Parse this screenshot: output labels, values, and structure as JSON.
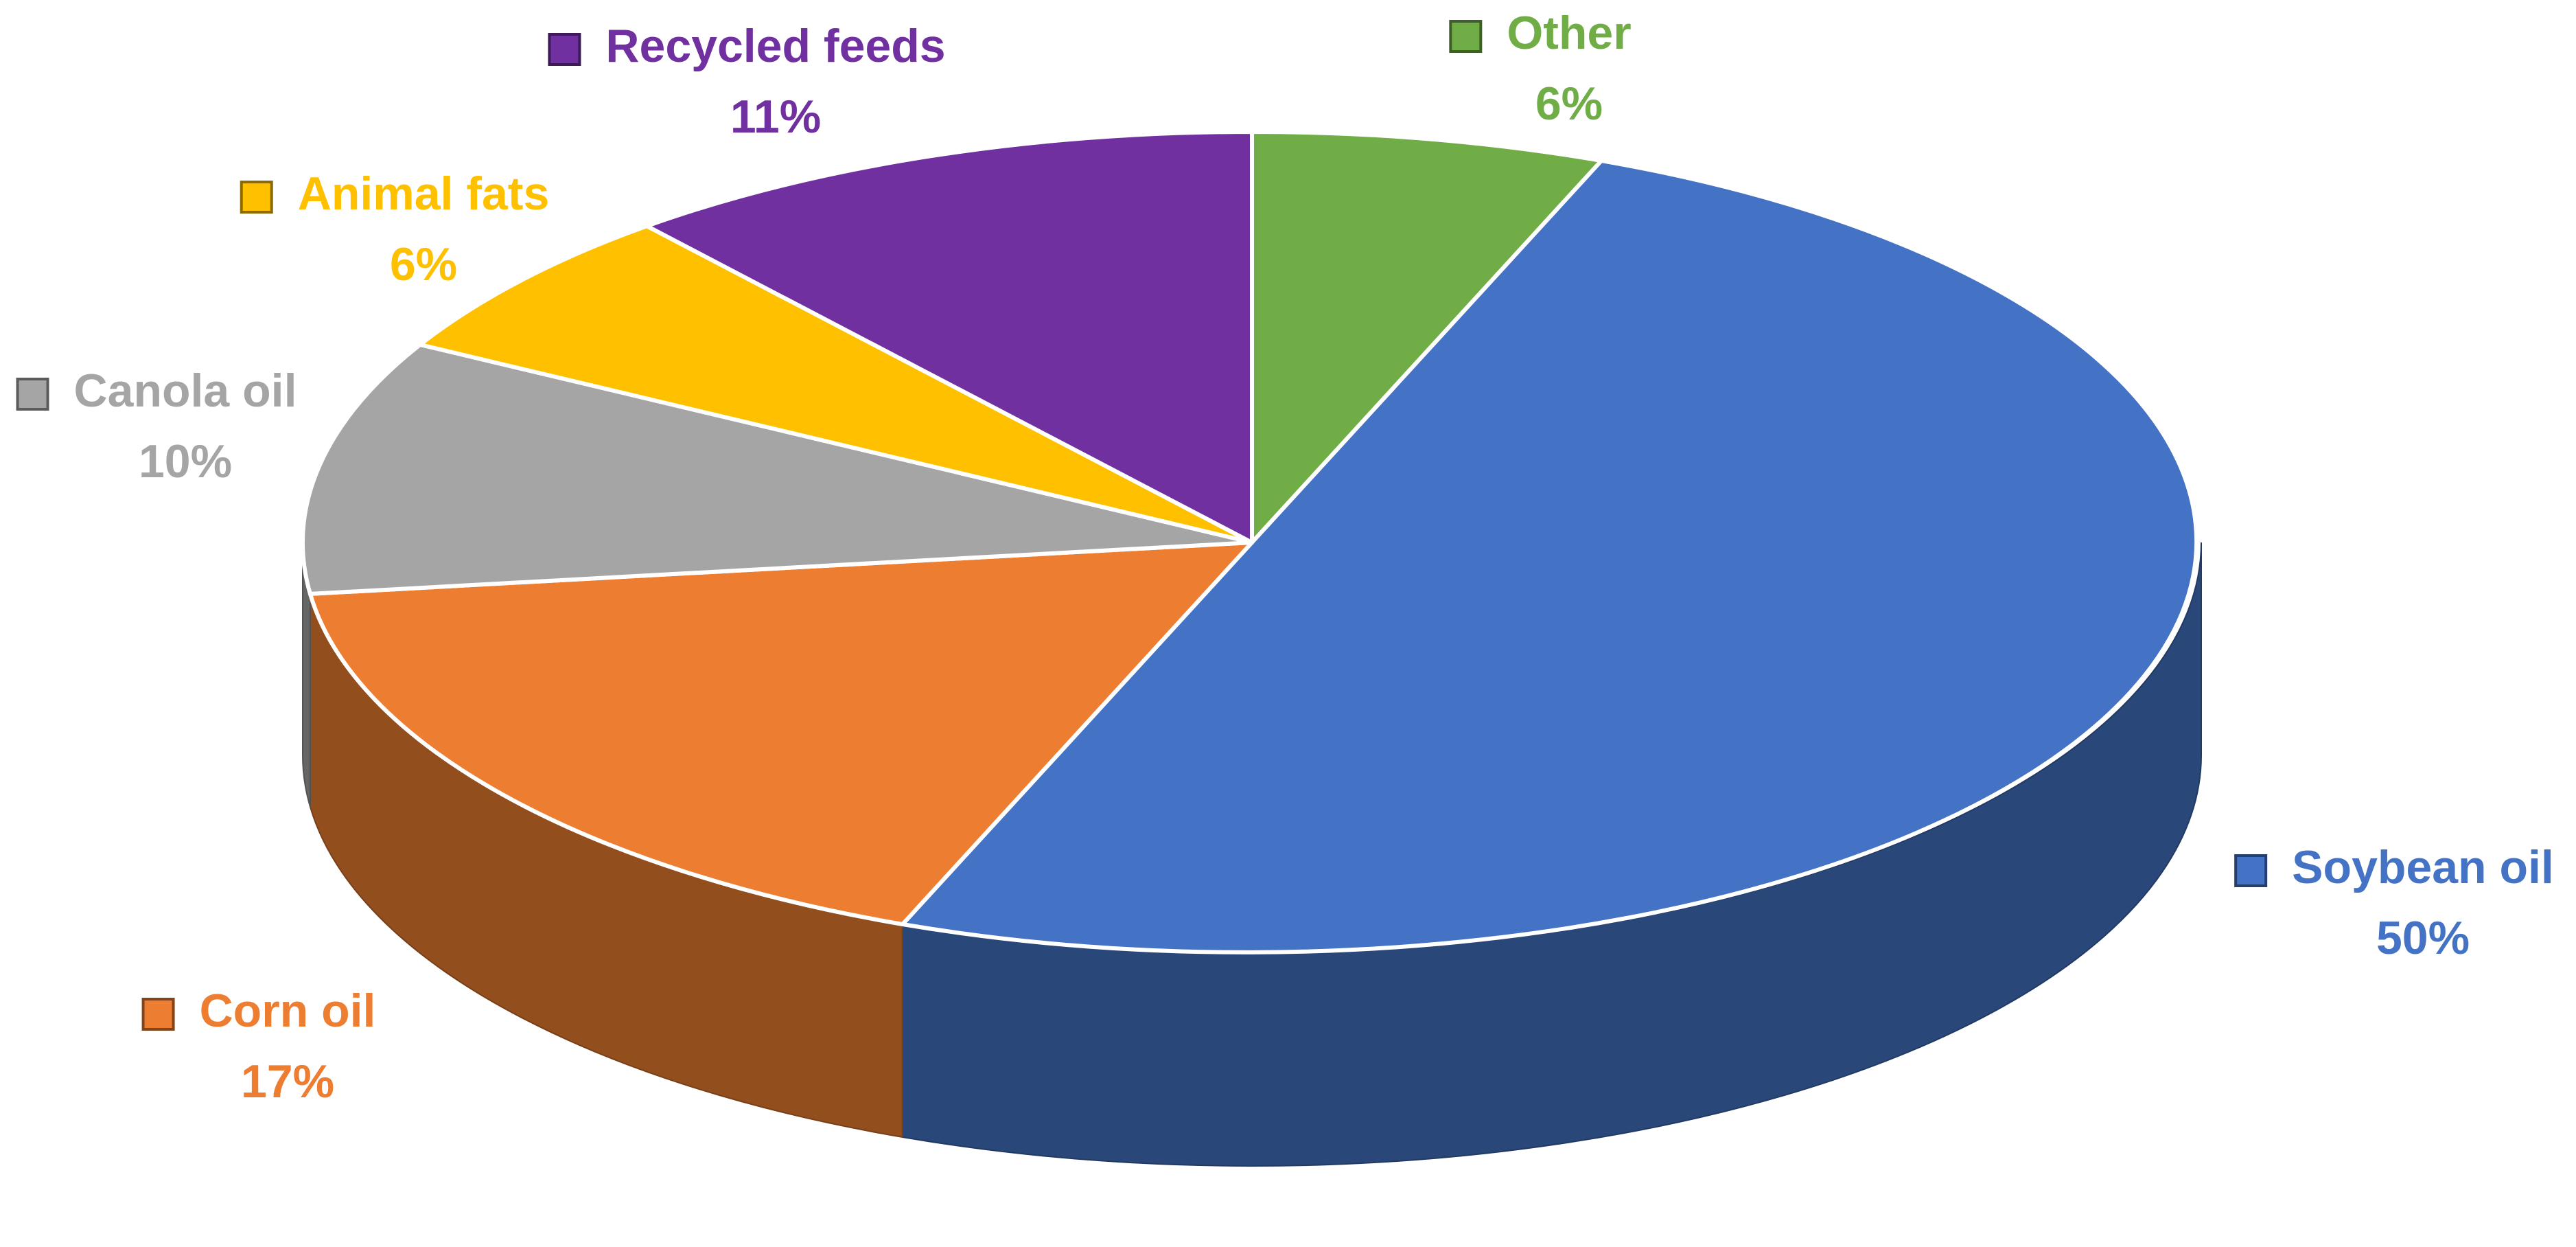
{
  "chart_data": {
    "type": "pie",
    "categories": [
      "Other",
      "Soybean oil",
      "Corn oil",
      "Canola oil",
      "Animal fats",
      "Recycled feeds"
    ],
    "values": [
      6,
      50,
      17,
      10,
      6,
      11
    ],
    "value_labels": [
      "6%",
      "50%",
      "17%",
      "10%",
      "6%",
      "11%"
    ],
    "colors": [
      "#70ad47",
      "#4472c4",
      "#ed7d31",
      "#a5a5a5",
      "#ffc000",
      "#7030a0"
    ]
  }
}
